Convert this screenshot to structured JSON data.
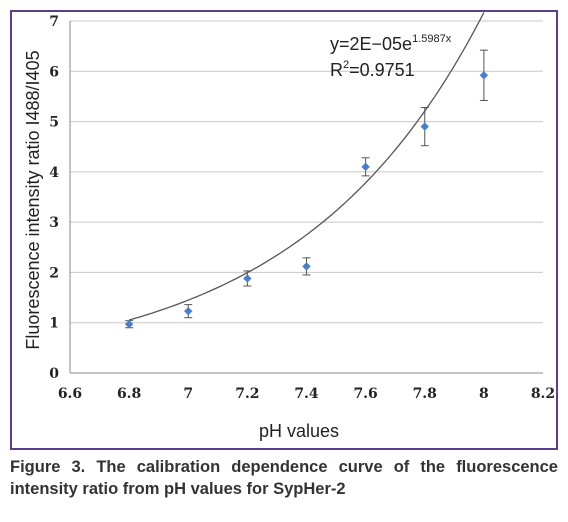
{
  "chart_data": {
    "type": "scatter",
    "title": "",
    "xlabel": "pH values",
    "ylabel": "Fluorescence intensity ratio I488/I405",
    "xlim": [
      6.6,
      8.2
    ],
    "ylim": [
      0,
      7
    ],
    "x_ticks": [
      "6.6",
      "6.8",
      "7",
      "7.2",
      "7.4",
      "7.6",
      "7.8",
      "8",
      "8.2"
    ],
    "y_ticks": [
      "0",
      "1",
      "2",
      "3",
      "4",
      "5",
      "6",
      "7"
    ],
    "grid": "horizontal",
    "series": [
      {
        "x": [
          6.8,
          7.0,
          7.2,
          7.4,
          7.6,
          7.8,
          8.0
        ],
        "y": [
          0.97,
          1.23,
          1.88,
          2.12,
          4.1,
          4.9,
          5.92
        ],
        "error": [
          0.07,
          0.13,
          0.15,
          0.17,
          0.18,
          0.38,
          0.5
        ],
        "color": "#4a7ec8"
      }
    ],
    "trendline": {
      "type": "exponential",
      "a": 2e-05,
      "b": 1.5987,
      "x_range": [
        6.8,
        8.0
      ],
      "color": "#555555",
      "equation_main": "y=2E−05e",
      "equation_exponent": "1.5987x",
      "r2_base": "R",
      "r2_sup": "2",
      "r2_value": "=0.9751"
    }
  },
  "caption": "Figure 3. The calibration dependence curve of the fluorescence intensity ratio from pH values for SypHer-2"
}
